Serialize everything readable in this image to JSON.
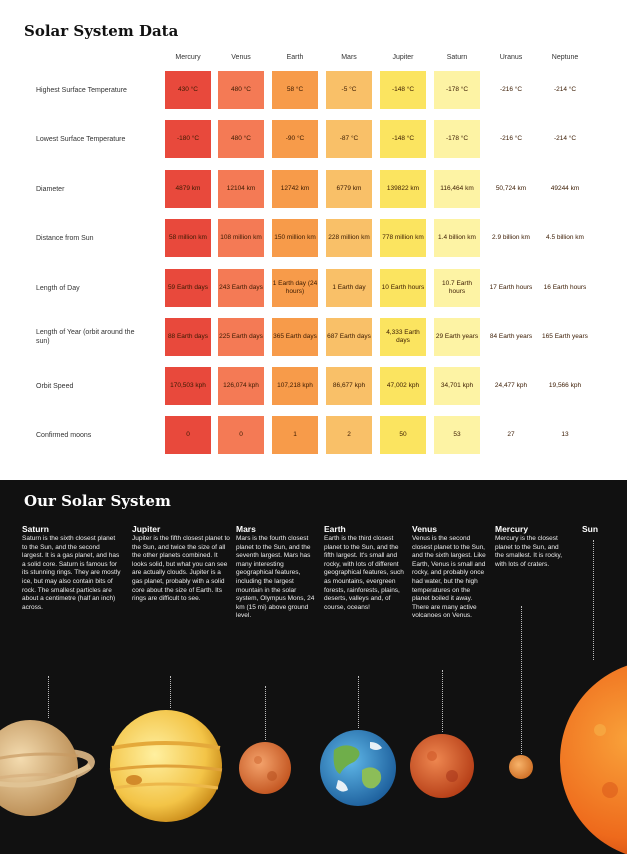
{
  "table": {
    "title": "Solar System Data",
    "columns": [
      "Mercury",
      "Venus",
      "Earth",
      "Mars",
      "Jupiter",
      "Saturn",
      "Uranus",
      "Neptune"
    ],
    "colors": [
      "#e8493c",
      "#f47a55",
      "#f79b4a",
      "#f9c068",
      "#fbe460",
      "#fdf3a4",
      "#ffffff",
      "#ffffff"
    ],
    "rows": [
      {
        "label": "Highest Surface Temperature",
        "values": [
          "430 °C",
          "480 °C",
          "58 °C",
          "-5 °C",
          "-148 °C",
          "-178 °C",
          "-216 °C",
          "-214 °C"
        ]
      },
      {
        "label": "Lowest Surface Temperature",
        "values": [
          "-180 °C",
          "480 °C",
          "-90 °C",
          "-87 °C",
          "-148 °C",
          "-178 °C",
          "-216 °C",
          "-214 °C"
        ]
      },
      {
        "label": "Diameter",
        "values": [
          "4879 km",
          "12104 km",
          "12742 km",
          "6779 km",
          "139822 km",
          "116,464 km",
          "50,724 km",
          "49244 km"
        ]
      },
      {
        "label": "Distance from Sun",
        "values": [
          "58 million km",
          "108 million km",
          "150 million km",
          "228 million km",
          "778 million km",
          "1.4 billion km",
          "2.9 billion km",
          "4.5 billion km"
        ]
      },
      {
        "label": "Length of Day",
        "values": [
          "59 Earth days",
          "243 Earth days",
          "1 Earth day (24 hours)",
          "1 Earth day",
          "10 Earth hours",
          "10.7 Earth hours",
          "17 Earth hours",
          "16 Earth hours"
        ]
      },
      {
        "label": "Length of Year (orbit around the sun)",
        "values": [
          "88 Earth days",
          "225 Earth days",
          "365 Earth days",
          "687 Earth days",
          "4,333 Earth days",
          "29 Earth years",
          "84 Earth years",
          "165 Earth years"
        ]
      },
      {
        "label": "Orbit Speed",
        "values": [
          "170,503 kph",
          "126,074 kph",
          "107,218 kph",
          "86,677 kph",
          "47,002 kph",
          "34,701 kph",
          "24,477 kph",
          "19,566 kph"
        ]
      },
      {
        "label": "Confirmed moons",
        "values": [
          "0",
          "0",
          "1",
          "2",
          "50",
          "53",
          "27",
          "13"
        ]
      }
    ]
  },
  "system": {
    "title": "Our Solar System",
    "planets": [
      {
        "name": "Saturn",
        "desc": "Saturn is the sixth closest planet to the Sun, and the second largest. It is a gas planet, and has a solid core. Saturn is famous for its stunning rings. They are mostly ice, but may also contain bits of rock. The smallest particles are about a centimetre (half an inch) across."
      },
      {
        "name": "Jupiter",
        "desc": "Jupiter is the fifth closest planet to the Sun, and twice the size of all the other planets combined. It looks solid, but what you can see are actually clouds. Jupiter is a gas planet, probably with a solid core about the size of Earth. Its rings are difficult to see."
      },
      {
        "name": "Mars",
        "desc": "Mars is the fourth closest planet to the Sun, and the seventh largest. Mars has many interesting geographical features, including the largest mountain in the solar system, Olympus Mons, 24 km (15 mi) above ground level."
      },
      {
        "name": "Earth",
        "desc": "Earth is the third closest planet to the Sun, and the fifth largest. It's small and rocky, with lots of different geographical features, such as mountains, evergreen forests, rainforests, plains, deserts, valleys and, of course, oceans!"
      },
      {
        "name": "Venus",
        "desc": "Venus is the second closest planet to the Sun, and the sixth largest. Like Earth, Venus is small and rocky, and probably once had water, but the high temperatures on the planet boiled it away. There are many active volcanoes on Venus."
      },
      {
        "name": "Mercury",
        "desc": "Mercury is the closest planet to the Sun, and the smallest. It is rocky, with lots of craters."
      },
      {
        "name": "Sun",
        "desc": ""
      }
    ]
  }
}
